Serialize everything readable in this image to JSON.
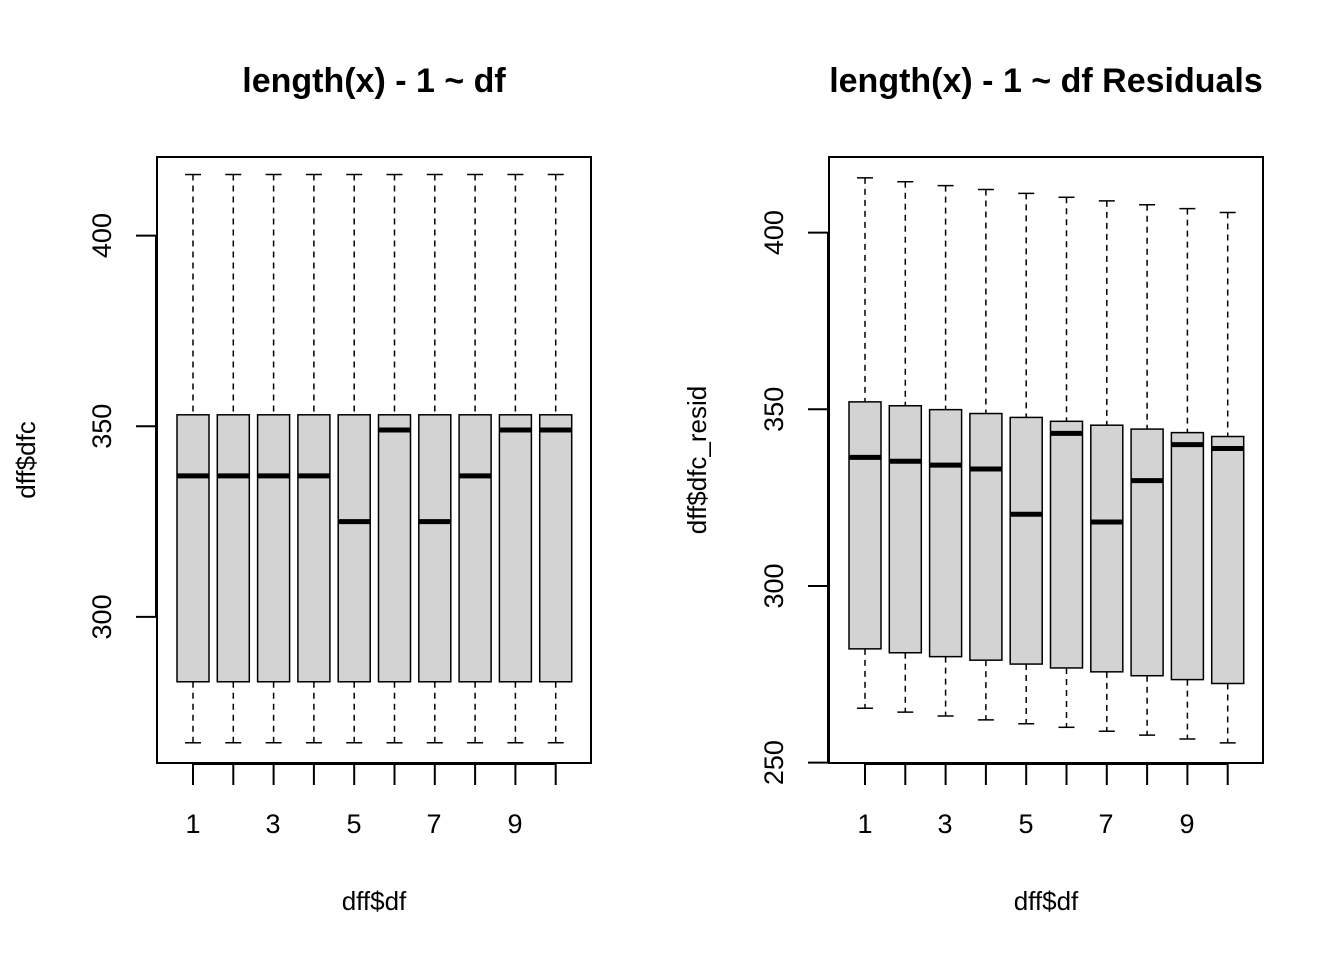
{
  "chart_data": [
    {
      "type": "boxplot",
      "title": "length(x) - 1 ~ df",
      "xlabel": "dff$df",
      "ylabel": "dff$dfc",
      "categories": [
        1,
        2,
        3,
        4,
        5,
        6,
        7,
        8,
        9,
        10
      ],
      "x_tick_labels": [
        "1",
        "3",
        "5",
        "7",
        "9"
      ],
      "y_ticks": [
        300,
        350,
        400
      ],
      "y_tick_labels": [
        "300",
        "350",
        "400"
      ],
      "ylim": [
        261.7,
        420.6
      ],
      "boxes": [
        {
          "x": 1,
          "min": 267,
          "q1": 283,
          "median": 337,
          "q3": 353,
          "max": 416
        },
        {
          "x": 2,
          "min": 267,
          "q1": 283,
          "median": 337,
          "q3": 353,
          "max": 416
        },
        {
          "x": 3,
          "min": 267,
          "q1": 283,
          "median": 337,
          "q3": 353,
          "max": 416
        },
        {
          "x": 4,
          "min": 267,
          "q1": 283,
          "median": 337,
          "q3": 353,
          "max": 416
        },
        {
          "x": 5,
          "min": 267,
          "q1": 283,
          "median": 325,
          "q3": 353,
          "max": 416
        },
        {
          "x": 6,
          "min": 267,
          "q1": 283,
          "median": 349,
          "q3": 353,
          "max": 416
        },
        {
          "x": 7,
          "min": 267,
          "q1": 283,
          "median": 325,
          "q3": 353,
          "max": 416
        },
        {
          "x": 8,
          "min": 267,
          "q1": 283,
          "median": 337,
          "q3": 353,
          "max": 416
        },
        {
          "x": 9,
          "min": 267,
          "q1": 283,
          "median": 349,
          "q3": 353,
          "max": 416
        },
        {
          "x": 10,
          "min": 267,
          "q1": 283,
          "median": 349,
          "q3": 353,
          "max": 416
        }
      ],
      "box_fill": "#d3d3d3"
    },
    {
      "type": "boxplot",
      "title": "length(x) - 1 ~ df Residuals",
      "xlabel": "dff$df",
      "ylabel": "dff$dfc_resid",
      "categories": [
        1,
        2,
        3,
        4,
        5,
        6,
        7,
        8,
        9,
        10
      ],
      "x_tick_labels": [
        "1",
        "3",
        "5",
        "7",
        "9"
      ],
      "y_ticks": [
        250,
        300,
        350,
        400
      ],
      "y_tick_labels": [
        "250",
        "300",
        "350",
        "400"
      ],
      "ylim": [
        249.9,
        421.4
      ],
      "boxes": [
        {
          "x": 1,
          "min": 265.4,
          "q1": 282.2,
          "median": 336.4,
          "q3": 352.1,
          "max": 415.5
        },
        {
          "x": 2,
          "min": 264.3,
          "q1": 281.1,
          "median": 335.3,
          "q3": 351.0,
          "max": 414.4
        },
        {
          "x": 3,
          "min": 263.2,
          "q1": 280.0,
          "median": 334.2,
          "q3": 349.9,
          "max": 413.3
        },
        {
          "x": 4,
          "min": 262.1,
          "q1": 279.0,
          "median": 333.1,
          "q3": 348.8,
          "max": 412.2
        },
        {
          "x": 5,
          "min": 261.0,
          "q1": 277.9,
          "median": 320.3,
          "q3": 347.7,
          "max": 411.1
        },
        {
          "x": 6,
          "min": 260.0,
          "q1": 276.8,
          "median": 343.2,
          "q3": 346.6,
          "max": 410.0
        },
        {
          "x": 7,
          "min": 258.9,
          "q1": 275.7,
          "median": 318.1,
          "q3": 345.5,
          "max": 409.0
        },
        {
          "x": 8,
          "min": 257.8,
          "q1": 274.6,
          "median": 329.8,
          "q3": 344.4,
          "max": 407.9
        },
        {
          "x": 9,
          "min": 256.7,
          "q1": 273.5,
          "median": 340.0,
          "q3": 343.4,
          "max": 406.8
        },
        {
          "x": 10,
          "min": 255.6,
          "q1": 272.4,
          "median": 338.9,
          "q3": 342.3,
          "max": 405.7
        }
      ],
      "box_fill": "#d3d3d3"
    }
  ]
}
